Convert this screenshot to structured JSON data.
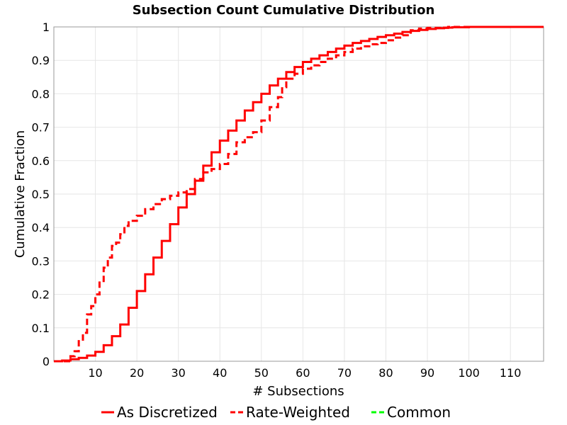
{
  "chart_data": {
    "type": "line",
    "title": "Subsection Count Cumulative Distribution",
    "xlabel": "# Subsections",
    "ylabel": "Cumulative Fraction",
    "xlim": [
      0,
      118
    ],
    "ylim": [
      0,
      1
    ],
    "x_ticks": [
      10,
      20,
      30,
      40,
      50,
      60,
      70,
      80,
      90,
      100,
      110
    ],
    "y_ticks": [
      0,
      0.1,
      0.2,
      0.3,
      0.4,
      0.5,
      0.6,
      0.7,
      0.8,
      0.9,
      1
    ],
    "grid": true,
    "legend_position": "bottom",
    "step": true,
    "series": [
      {
        "name": "As Discretized",
        "color": "#ff0000",
        "dash": "solid",
        "points": [
          [
            0,
            0
          ],
          [
            2,
            0.002
          ],
          [
            4,
            0.006
          ],
          [
            6,
            0.01
          ],
          [
            8,
            0.017
          ],
          [
            10,
            0.028
          ],
          [
            12,
            0.048
          ],
          [
            14,
            0.075
          ],
          [
            16,
            0.11
          ],
          [
            18,
            0.16
          ],
          [
            20,
            0.21
          ],
          [
            22,
            0.26
          ],
          [
            24,
            0.31
          ],
          [
            26,
            0.36
          ],
          [
            28,
            0.41
          ],
          [
            30,
            0.46
          ],
          [
            32,
            0.5
          ],
          [
            34,
            0.54
          ],
          [
            36,
            0.585
          ],
          [
            38,
            0.625
          ],
          [
            40,
            0.66
          ],
          [
            42,
            0.69
          ],
          [
            44,
            0.72
          ],
          [
            46,
            0.75
          ],
          [
            48,
            0.775
          ],
          [
            50,
            0.8
          ],
          [
            52,
            0.825
          ],
          [
            54,
            0.845
          ],
          [
            56,
            0.865
          ],
          [
            58,
            0.88
          ],
          [
            60,
            0.895
          ],
          [
            62,
            0.905
          ],
          [
            64,
            0.915
          ],
          [
            66,
            0.925
          ],
          [
            68,
            0.935
          ],
          [
            70,
            0.944
          ],
          [
            72,
            0.952
          ],
          [
            74,
            0.958
          ],
          [
            76,
            0.964
          ],
          [
            78,
            0.97
          ],
          [
            80,
            0.975
          ],
          [
            82,
            0.98
          ],
          [
            84,
            0.985
          ],
          [
            86,
            0.988
          ],
          [
            88,
            0.991
          ],
          [
            90,
            0.994
          ],
          [
            92,
            0.996
          ],
          [
            94,
            0.998
          ],
          [
            96,
            0.999
          ],
          [
            100,
            1
          ],
          [
            118,
            1
          ]
        ]
      },
      {
        "name": "Rate-Weighted",
        "color": "#ff0000",
        "dash": "dashed",
        "points": [
          [
            0,
            0
          ],
          [
            4,
            0.015
          ],
          [
            5,
            0.03
          ],
          [
            6,
            0.06
          ],
          [
            7,
            0.085
          ],
          [
            8,
            0.14
          ],
          [
            9,
            0.165
          ],
          [
            10,
            0.2
          ],
          [
            11,
            0.24
          ],
          [
            12,
            0.28
          ],
          [
            13,
            0.31
          ],
          [
            14,
            0.345
          ],
          [
            15,
            0.355
          ],
          [
            16,
            0.38
          ],
          [
            17,
            0.405
          ],
          [
            18,
            0.42
          ],
          [
            20,
            0.435
          ],
          [
            22,
            0.455
          ],
          [
            24,
            0.47
          ],
          [
            26,
            0.485
          ],
          [
            28,
            0.495
          ],
          [
            30,
            0.505
          ],
          [
            32,
            0.515
          ],
          [
            34,
            0.545
          ],
          [
            36,
            0.565
          ],
          [
            38,
            0.575
          ],
          [
            40,
            0.59
          ],
          [
            42,
            0.62
          ],
          [
            44,
            0.655
          ],
          [
            46,
            0.67
          ],
          [
            48,
            0.685
          ],
          [
            50,
            0.72
          ],
          [
            52,
            0.76
          ],
          [
            54,
            0.79
          ],
          [
            55,
            0.82
          ],
          [
            56,
            0.845
          ],
          [
            58,
            0.86
          ],
          [
            60,
            0.875
          ],
          [
            62,
            0.885
          ],
          [
            64,
            0.895
          ],
          [
            66,
            0.905
          ],
          [
            68,
            0.915
          ],
          [
            70,
            0.925
          ],
          [
            72,
            0.935
          ],
          [
            74,
            0.942
          ],
          [
            76,
            0.948
          ],
          [
            78,
            0.952
          ],
          [
            80,
            0.96
          ],
          [
            82,
            0.968
          ],
          [
            84,
            0.975
          ],
          [
            86,
            0.99
          ],
          [
            88,
            0.995
          ],
          [
            90,
            0.997
          ],
          [
            95,
            1
          ],
          [
            118,
            1
          ]
        ]
      },
      {
        "name": "Common",
        "color": "#00ff00",
        "dash": "dashed",
        "points": []
      }
    ]
  }
}
